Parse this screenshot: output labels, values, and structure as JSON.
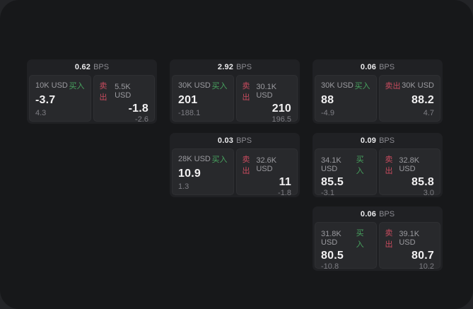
{
  "labels": {
    "bps_unit": "BPS",
    "buy": "买入",
    "sell": "卖出"
  },
  "colors": {
    "buy_green": "#47a35f",
    "sell_red": "#c84b5e",
    "surface": "#17181a",
    "card": "#202124",
    "panel": "#28292c"
  },
  "cards": [
    {
      "row": 1,
      "col": 1,
      "spread_bps": "0.62",
      "buy": {
        "amount": "10K USD",
        "price": "-3.7",
        "sub_value": "4.3"
      },
      "sell": {
        "amount": "5.5K USD",
        "price": "-1.8",
        "sub_value": "-2.6"
      }
    },
    {
      "row": 1,
      "col": 2,
      "spread_bps": "2.92",
      "buy": {
        "amount": "30K USD",
        "price": "201",
        "sub_value": "-188.1"
      },
      "sell": {
        "amount": "30.1K USD",
        "price": "210",
        "sub_value": "196.5"
      }
    },
    {
      "row": 1,
      "col": 3,
      "spread_bps": "0.06",
      "buy": {
        "amount": "30K USD",
        "price": "88",
        "sub_value": "-4.9"
      },
      "sell": {
        "amount": "30K USD",
        "price": "88.2",
        "sub_value": "4.7"
      }
    },
    {
      "row": 2,
      "col": 2,
      "spread_bps": "0.03",
      "buy": {
        "amount": "28K USD",
        "price": "10.9",
        "sub_value": "1.3"
      },
      "sell": {
        "amount": "32.6K USD",
        "price": "11",
        "sub_value": "-1.8"
      }
    },
    {
      "row": 2,
      "col": 3,
      "spread_bps": "0.09",
      "buy": {
        "amount": "34.1K USD",
        "price": "85.5",
        "sub_value": "-3.1"
      },
      "sell": {
        "amount": "32.8K USD",
        "price": "85.8",
        "sub_value": "3.0"
      }
    },
    {
      "row": 3,
      "col": 3,
      "spread_bps": "0.06",
      "buy": {
        "amount": "31.8K USD",
        "price": "80.5",
        "sub_value": "-10.8"
      },
      "sell": {
        "amount": "39.1K USD",
        "price": "80.7",
        "sub_value": "10.2"
      }
    }
  ]
}
